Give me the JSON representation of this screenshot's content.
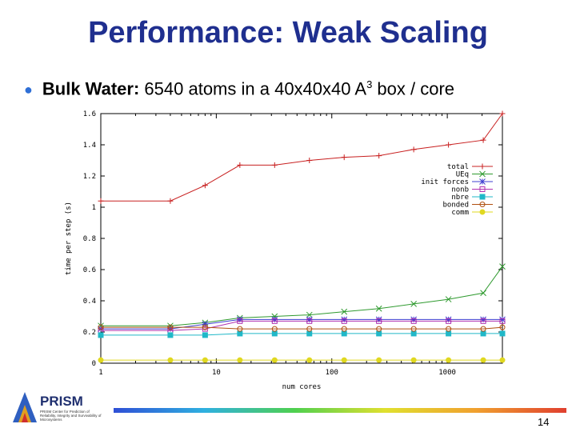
{
  "title": "Performance: Weak Scaling",
  "bullet": {
    "label": "Bulk Water",
    "text_pre": "6540 atoms in a 40x40x40 A",
    "sup": "3",
    "text_post": " box / core"
  },
  "logo": {
    "name": "PRISM",
    "tagline": "PRISM Center for Prediction of Reliability, Integrity and Survivability of Microsystems"
  },
  "page_number": "14",
  "chart_data": {
    "type": "line",
    "xscale": "log",
    "xlim": [
      1,
      3000
    ],
    "ylim": [
      0,
      1.6
    ],
    "xlabel": "num cores",
    "ylabel": "time per step (s)",
    "xticks": [
      1,
      10,
      100,
      1000
    ],
    "xtick_labels": [
      "1",
      "10",
      "100",
      "1000"
    ],
    "yticks": [
      0,
      0.2,
      0.4,
      0.6,
      0.8,
      1,
      1.2,
      1.4,
      1.6
    ],
    "ytick_labels": [
      "0",
      "0.2",
      "0.4",
      "0.6",
      "0.8",
      "1",
      "1.2",
      "1.4",
      "1.6"
    ],
    "legend_position": "top-right",
    "x": [
      1,
      4,
      8,
      16,
      32,
      64,
      128,
      256,
      512,
      1024,
      2048,
      3000
    ],
    "series": [
      {
        "name": "total",
        "color": "#c82020",
        "marker": "+",
        "values": [
          1.04,
          1.04,
          1.14,
          1.27,
          1.27,
          1.3,
          1.32,
          1.33,
          1.37,
          1.4,
          1.43,
          1.6
        ]
      },
      {
        "name": "UEq",
        "color": "#2f9a2f",
        "marker": "x",
        "values": [
          0.24,
          0.24,
          0.26,
          0.29,
          0.3,
          0.31,
          0.33,
          0.35,
          0.38,
          0.41,
          0.45,
          0.62
        ]
      },
      {
        "name": "init forces",
        "color": "#3f3fd0",
        "marker": "*",
        "values": [
          0.22,
          0.22,
          0.25,
          0.28,
          0.28,
          0.28,
          0.28,
          0.28,
          0.28,
          0.28,
          0.28,
          0.28
        ]
      },
      {
        "name": "nonb",
        "color": "#b030b0",
        "marker": "square",
        "values": [
          0.21,
          0.21,
          0.22,
          0.27,
          0.27,
          0.27,
          0.27,
          0.27,
          0.27,
          0.27,
          0.27,
          0.27
        ]
      },
      {
        "name": "nbre",
        "color": "#20b8c8",
        "marker": "filled-square",
        "values": [
          0.18,
          0.18,
          0.18,
          0.19,
          0.19,
          0.19,
          0.19,
          0.19,
          0.19,
          0.19,
          0.19,
          0.19
        ]
      },
      {
        "name": "bonded",
        "color": "#b05010",
        "marker": "circle",
        "values": [
          0.23,
          0.23,
          0.23,
          0.22,
          0.22,
          0.22,
          0.22,
          0.22,
          0.22,
          0.22,
          0.22,
          0.23
        ]
      },
      {
        "name": "comm",
        "color": "#e0d820",
        "marker": "filled-circle",
        "values": [
          0.02,
          0.02,
          0.02,
          0.02,
          0.02,
          0.02,
          0.02,
          0.02,
          0.02,
          0.02,
          0.02,
          0.02
        ]
      }
    ]
  }
}
